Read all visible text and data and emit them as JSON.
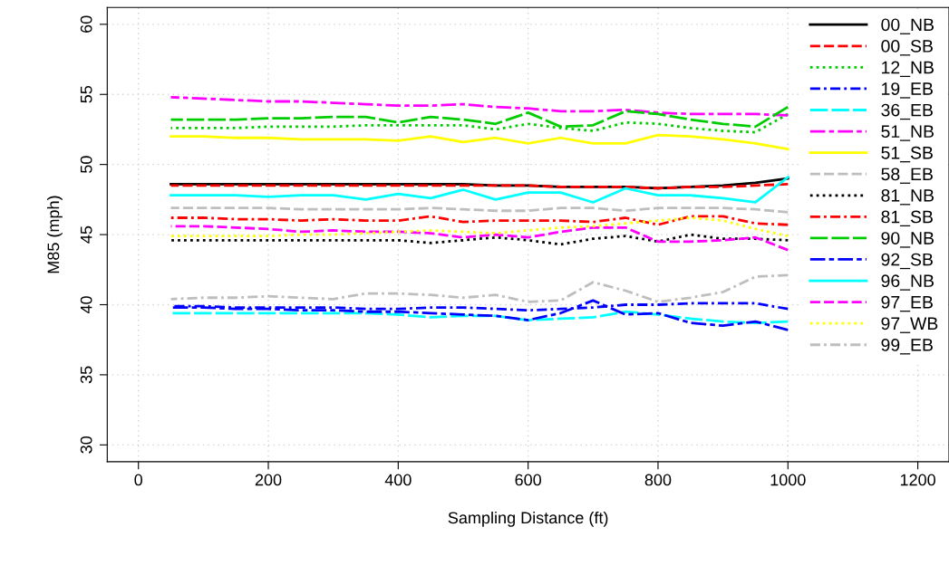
{
  "chart_data": {
    "type": "line",
    "xlabel": "Sampling Distance (ft)",
    "ylabel": "M85 (mph)",
    "x": [
      50,
      100,
      150,
      200,
      250,
      300,
      350,
      400,
      450,
      500,
      550,
      600,
      650,
      700,
      750,
      800,
      850,
      900,
      950,
      1000
    ],
    "xlim": [
      -48,
      1248
    ],
    "ylim": [
      28.8,
      61.2
    ],
    "xticks": [
      0,
      200,
      400,
      600,
      800,
      1000,
      1200
    ],
    "yticks": [
      30,
      35,
      40,
      45,
      50,
      55,
      60
    ],
    "grid": true,
    "legend": "top right",
    "marker": "none",
    "series": [
      {
        "name": "00_NB",
        "color": "#000000",
        "line_style": "solid",
        "values": [
          48.6,
          48.6,
          48.6,
          48.6,
          48.6,
          48.6,
          48.6,
          48.6,
          48.6,
          48.6,
          48.5,
          48.5,
          48.4,
          48.4,
          48.4,
          48.3,
          48.4,
          48.5,
          48.7,
          49.0
        ]
      },
      {
        "name": "00_SB",
        "color": "#ff0000",
        "line_style": "dashed",
        "values": [
          48.5,
          48.5,
          48.5,
          48.5,
          48.5,
          48.5,
          48.5,
          48.5,
          48.5,
          48.5,
          48.5,
          48.5,
          48.4,
          48.4,
          48.4,
          48.3,
          48.4,
          48.4,
          48.5,
          48.6
        ]
      },
      {
        "name": "12_NB",
        "color": "#00cd00",
        "line_style": "dotted",
        "values": [
          52.6,
          52.6,
          52.6,
          52.7,
          52.7,
          52.7,
          52.8,
          52.8,
          52.8,
          52.8,
          52.5,
          52.9,
          52.6,
          52.4,
          53.0,
          52.9,
          52.6,
          52.4,
          52.3,
          53.6
        ]
      },
      {
        "name": "19_EB",
        "color": "#0000ff",
        "line_style": "dashdot",
        "values": [
          39.9,
          39.9,
          39.8,
          39.8,
          39.8,
          39.8,
          39.7,
          39.7,
          39.8,
          39.8,
          39.7,
          39.6,
          39.7,
          39.8,
          40.0,
          40.0,
          40.1,
          40.1,
          40.1,
          39.7
        ]
      },
      {
        "name": "36_EB",
        "color": "#00ffff",
        "line_style": "longdash",
        "values": [
          39.4,
          39.4,
          39.4,
          39.4,
          39.4,
          39.4,
          39.4,
          39.3,
          39.1,
          39.2,
          39.2,
          38.9,
          39.0,
          39.1,
          39.5,
          39.3,
          39.0,
          38.8,
          38.7,
          38.8
        ]
      },
      {
        "name": "51_NB",
        "color": "#ff00ff",
        "line_style": "twodash",
        "values": [
          54.8,
          54.7,
          54.6,
          54.5,
          54.5,
          54.4,
          54.3,
          54.2,
          54.2,
          54.3,
          54.1,
          54.0,
          53.8,
          53.8,
          53.9,
          53.7,
          53.6,
          53.6,
          53.6,
          53.5
        ]
      },
      {
        "name": "51_SB",
        "color": "#ffff00",
        "line_style": "solid",
        "values": [
          52.0,
          52.0,
          51.9,
          51.9,
          51.8,
          51.8,
          51.8,
          51.7,
          52.0,
          51.6,
          51.9,
          51.5,
          51.9,
          51.5,
          51.5,
          52.1,
          52.0,
          51.8,
          51.5,
          51.1
        ]
      },
      {
        "name": "58_EB",
        "color": "#bebebe",
        "line_style": "dashed",
        "values": [
          46.9,
          46.9,
          46.9,
          46.9,
          46.8,
          46.8,
          46.8,
          46.8,
          46.9,
          46.8,
          46.7,
          46.7,
          46.9,
          46.9,
          46.7,
          46.9,
          46.9,
          46.9,
          46.8,
          46.6
        ]
      },
      {
        "name": "81_NB",
        "color": "#000000",
        "line_style": "dotted",
        "values": [
          44.6,
          44.6,
          44.6,
          44.6,
          44.6,
          44.6,
          44.6,
          44.6,
          44.4,
          44.6,
          44.8,
          44.6,
          44.3,
          44.7,
          44.9,
          44.5,
          45.0,
          44.7,
          44.7,
          44.6
        ]
      },
      {
        "name": "81_SB",
        "color": "#ff0000",
        "line_style": "dashdot",
        "values": [
          46.2,
          46.2,
          46.1,
          46.1,
          46.0,
          46.1,
          46.0,
          46.0,
          46.3,
          45.9,
          46.0,
          46.0,
          46.0,
          45.9,
          46.2,
          45.7,
          46.3,
          46.3,
          45.8,
          45.7
        ]
      },
      {
        "name": "90_NB",
        "color": "#00cd00",
        "line_style": "longdash",
        "values": [
          53.2,
          53.2,
          53.2,
          53.3,
          53.3,
          53.4,
          53.4,
          53.0,
          53.4,
          53.2,
          52.9,
          53.7,
          52.7,
          52.8,
          53.8,
          53.6,
          53.2,
          52.9,
          52.7,
          54.1
        ]
      },
      {
        "name": "92_SB",
        "color": "#0000ff",
        "line_style": "twodash",
        "values": [
          39.8,
          39.8,
          39.7,
          39.7,
          39.6,
          39.6,
          39.5,
          39.5,
          39.4,
          39.3,
          39.2,
          38.9,
          39.4,
          40.3,
          39.3,
          39.4,
          38.7,
          38.5,
          38.8,
          38.2
        ]
      },
      {
        "name": "96_NB",
        "color": "#00ffff",
        "line_style": "solid",
        "values": [
          47.8,
          47.8,
          47.8,
          47.7,
          47.8,
          47.8,
          47.5,
          47.9,
          47.6,
          48.2,
          47.5,
          48.0,
          48.0,
          47.3,
          48.3,
          47.8,
          47.8,
          47.6,
          47.3,
          49.1
        ]
      },
      {
        "name": "97_EB",
        "color": "#ff00ff",
        "line_style": "dashed",
        "values": [
          45.6,
          45.6,
          45.5,
          45.4,
          45.2,
          45.3,
          45.2,
          45.2,
          45.1,
          44.8,
          45.0,
          44.8,
          45.2,
          45.5,
          45.5,
          44.5,
          44.5,
          44.6,
          44.8,
          43.9
        ]
      },
      {
        "name": "97_WB",
        "color": "#ffff00",
        "line_style": "dotted",
        "values": [
          44.9,
          44.9,
          44.9,
          44.9,
          45.0,
          45.0,
          45.1,
          45.2,
          45.3,
          45.2,
          45.1,
          45.3,
          45.5,
          45.6,
          45.8,
          46.0,
          46.2,
          46.0,
          45.4,
          44.9
        ]
      },
      {
        "name": "99_EB",
        "color": "#bebebe",
        "line_style": "dashdot",
        "values": [
          40.4,
          40.5,
          40.5,
          40.6,
          40.5,
          40.4,
          40.8,
          40.8,
          40.7,
          40.5,
          40.7,
          40.2,
          40.3,
          41.6,
          41.0,
          40.2,
          40.5,
          40.9,
          42.0,
          42.1
        ]
      }
    ]
  }
}
